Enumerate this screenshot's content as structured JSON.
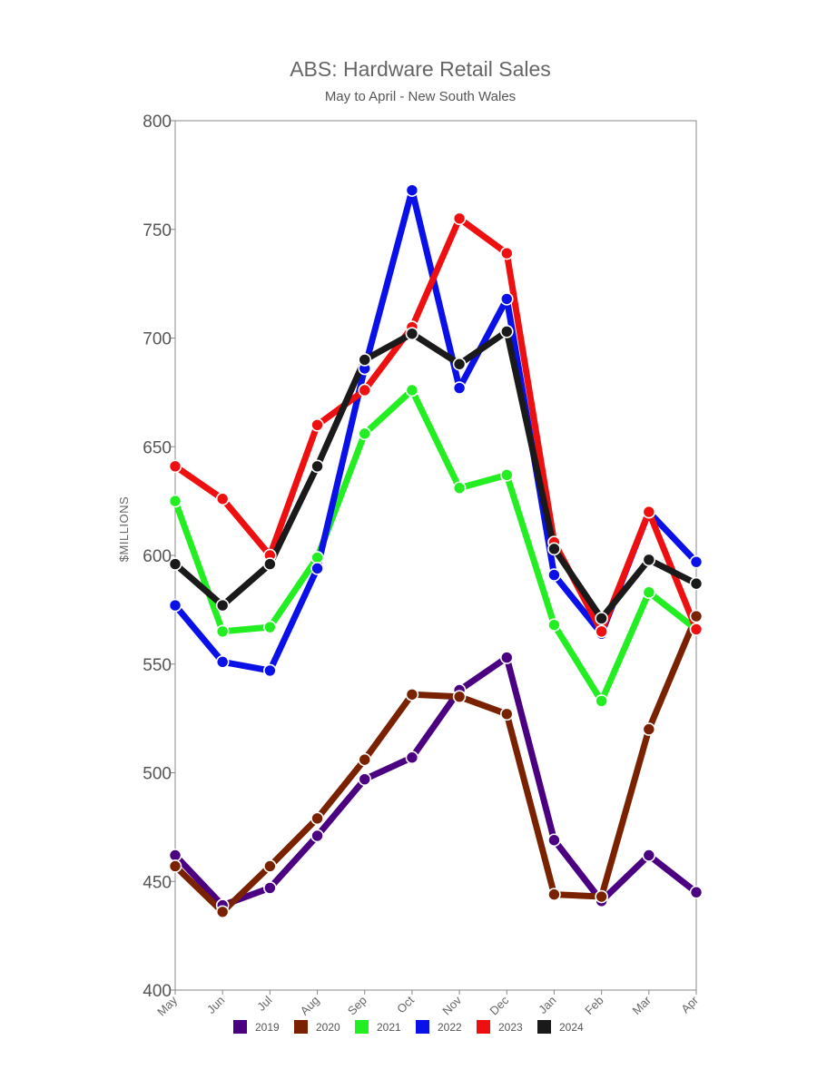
{
  "chart_data": {
    "type": "line",
    "title": "ABS: Hardware Retail Sales",
    "subtitle": "May to April - New South Wales",
    "ylabel": "$MILLIONS",
    "xlabel": "",
    "ylim": [
      400,
      800
    ],
    "yticks": [
      400,
      450,
      500,
      550,
      600,
      650,
      700,
      750,
      800
    ],
    "categories": [
      "May",
      "Jun",
      "Jul",
      "Aug",
      "Sep",
      "Oct",
      "Nov",
      "Dec",
      "Jan",
      "Feb",
      "Mar",
      "Apr"
    ],
    "legend_position": "bottom",
    "grid": false,
    "series": [
      {
        "name": "2019",
        "color": "#4b0082",
        "values": [
          462,
          439,
          447,
          471,
          497,
          507,
          538,
          553,
          469,
          441,
          462,
          445
        ]
      },
      {
        "name": "2020",
        "color": "#7a2200",
        "values": [
          457,
          436,
          457,
          479,
          506,
          536,
          535,
          527,
          444,
          443,
          520,
          572
        ]
      },
      {
        "name": "2021",
        "color": "#22ee22",
        "values": [
          625,
          565,
          567,
          599,
          656,
          676,
          631,
          637,
          568,
          533,
          583,
          566
        ]
      },
      {
        "name": "2022",
        "color": "#0a10e8",
        "values": [
          577,
          551,
          547,
          594,
          686,
          768,
          677,
          718,
          591,
          564,
          620,
          597
        ]
      },
      {
        "name": "2023",
        "color": "#ee1010",
        "values": [
          641,
          626,
          600,
          660,
          676,
          705,
          755,
          739,
          606,
          565,
          620,
          566
        ]
      },
      {
        "name": "2024",
        "color": "#1a1a1a",
        "values": [
          596,
          577,
          596,
          641,
          690,
          702,
          688,
          703,
          603,
          571,
          598,
          587
        ]
      }
    ]
  }
}
